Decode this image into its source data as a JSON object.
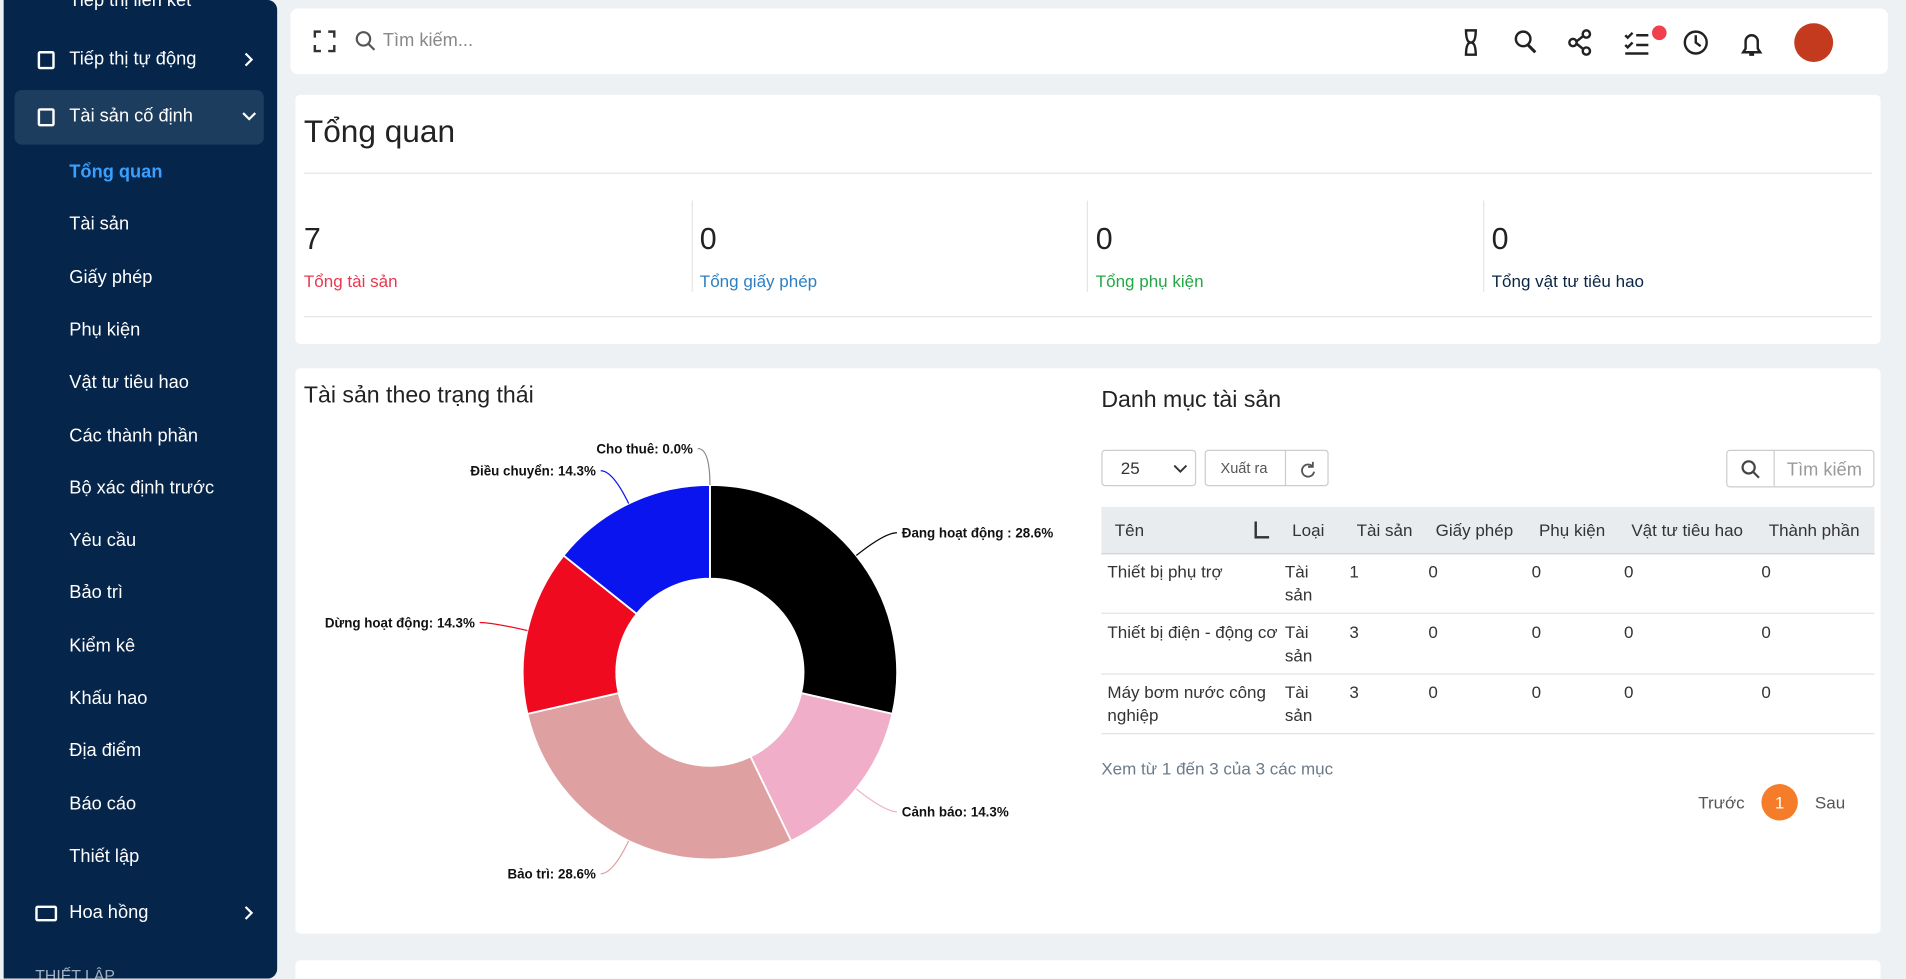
{
  "sidebar": {
    "top_item": "Tiếp thị liên kết",
    "items": [
      "Tiếp thị tự động",
      "Tài sản cố định"
    ],
    "active": "Tài sản cố định",
    "sub_items": [
      "Tổng quan",
      "Tài sản",
      "Giấy phép",
      "Phụ kiện",
      "Vật tư tiêu hao",
      "Các thành phần",
      "Bộ xác định trước",
      "Yêu cầu",
      "Bảo trì",
      "Kiểm kê",
      "Khấu hao",
      "Địa điểm",
      "Báo cáo",
      "Thiết lập"
    ],
    "active_sub": "Tổng quan",
    "after_items": [
      "Hoa hồng"
    ],
    "section": "THIẾT LẬP"
  },
  "header": {
    "search_placeholder": "Tìm kiếm..."
  },
  "overview": {
    "title": "Tổng quan",
    "stats": [
      {
        "value": 7,
        "label": "Tổng tài sản",
        "color": "#e8384f"
      },
      {
        "value": 0,
        "label": "Tổng giấy phép",
        "color": "#2d7fc1"
      },
      {
        "value": 0,
        "label": "Tổng phụ kiện",
        "color": "#22a845"
      },
      {
        "value": 0,
        "label": "Tổng vật tư tiêu hao",
        "color": "#0b2545"
      }
    ]
  },
  "chart_data": {
    "type": "donut",
    "title": "Tài sản theo trạng thái",
    "labels": [
      "Đang hoạt động : 28.6%",
      "Cảnh báo: 14.3%",
      "Bảo trì: 28.6%",
      "Dừng hoạt động: 14.3%",
      "Điều chuyển: 14.3%",
      "Cho thuê: 0.0%"
    ],
    "values": [
      28.6,
      14.3,
      28.6,
      14.3,
      14.3,
      0.0
    ],
    "colors": [
      "#000000",
      "#f0aec8",
      "#dea0a0",
      "#ef0a20",
      "#0a14ee",
      "#888888"
    ]
  },
  "table": {
    "title": "Danh mục tài sản",
    "page_size": "25",
    "export": "Xuất ra",
    "search_placeholder": "Tìm kiếm",
    "columns": [
      "Tên",
      "Loại",
      "Tài sản",
      "Giấy phép",
      "Phụ kiện",
      "Vật tư tiêu hao",
      "Thành phần"
    ],
    "rows": [
      [
        "Thiết bị phụ trợ",
        "Tài sản",
        1,
        0,
        0,
        0,
        0
      ],
      [
        "Thiết bị điện - động cơ",
        "Tài sản",
        3,
        0,
        0,
        0,
        0
      ],
      [
        "Máy bơm nước công nghiệp",
        "Tài sản",
        3,
        0,
        0,
        0,
        0
      ]
    ],
    "info": "Xem từ 1 đến 3 của 3 các mục",
    "prev": "Trước",
    "current_page": "1",
    "next": "Sau"
  }
}
